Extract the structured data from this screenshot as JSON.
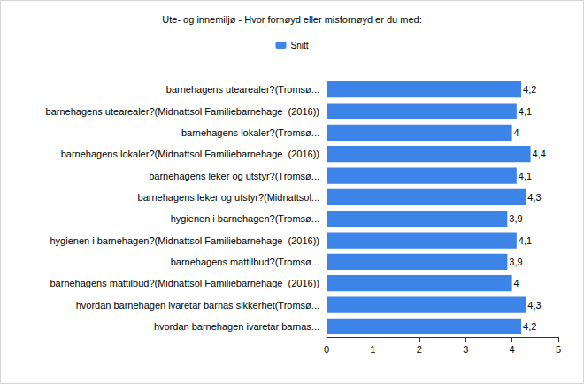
{
  "chart_data": {
    "type": "bar",
    "orientation": "horizontal",
    "title": "Ute- og innemiljø - Hvor fornøyd eller misfornøyd er du med:",
    "categories": [
      "barnehagens utearealer?(Tromsø...",
      "barnehagens utearealer?(Midnattsol Familiebarnehage  (2016))",
      "barnehagens lokaler?(Tromsø...",
      "barnehagens lokaler?(Midnattsol Familiebarnehage  (2016))",
      "barnehagens leker og utstyr?(Tromsø...",
      "barnehagens leker og utstyr?(Midnattsol...",
      "hygienen i barnehagen?(Tromsø...",
      "hygienen i barnehagen?(Midnattsol Familiebarnehage  (2016))",
      "barnehagens mattilbud?(Tromsø...",
      "barnehagens mattilbud?(Midnattsol Familiebarnehage  (2016))",
      "hvordan barnehagen ivaretar barnas sikkerhet(Tromsø...",
      "hvordan barnehagen ivaretar barnas..."
    ],
    "series": [
      {
        "name": "Snitt",
        "color": "#3c84e8",
        "values": [
          4.2,
          4.1,
          4,
          4.4,
          4.1,
          4.3,
          3.9,
          4.1,
          3.9,
          4,
          4.3,
          4.2
        ],
        "value_labels": [
          "4,2",
          "4,1",
          "4",
          "4,4",
          "4,1",
          "4,3",
          "3,9",
          "4,1",
          "3,9",
          "4",
          "4,3",
          "4,2"
        ]
      }
    ],
    "xlim": [
      0,
      5
    ],
    "xticks": [
      0,
      1,
      2,
      3,
      4,
      5
    ],
    "grid": false,
    "legend": "top",
    "data_labels": true
  }
}
